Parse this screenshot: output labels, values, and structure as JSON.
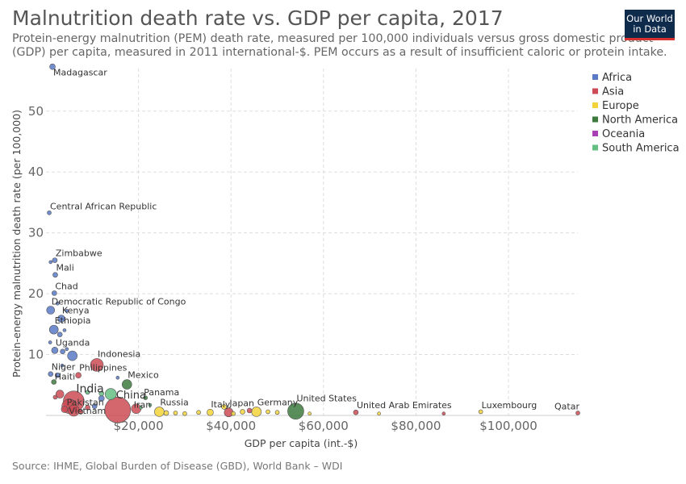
{
  "header": {
    "title": "Malnutrition death rate vs. GDP per capita, 2017",
    "subtitle": "Protein-energy malnutrition (PEM) death rate, measured per 100,000 individuals versus gross domestic product (GDP) per capita, measured in 2011 international-$. PEM occurs as a result of insufficient caloric or protein intake.",
    "logo_line1": "Our World",
    "logo_line2": "in Data"
  },
  "footer": {
    "source": "Source: IHME, Global Burden of Disease (GBD), World Bank – WDI"
  },
  "colors": {
    "Africa": "#5b7ac6",
    "Asia": "#cc4b55",
    "Europe": "#f2d33a",
    "North America": "#3d7a3d",
    "Oceania": "#a83fb5",
    "South America": "#65bf83"
  },
  "chart_data": {
    "type": "scatter",
    "title": "Malnutrition death rate vs. GDP per capita, 2017",
    "xlabel": "GDP per capita (int.-$)",
    "ylabel": "Protein-energy malnutrition death rate (per 100,000)",
    "xlim": [
      0,
      115000
    ],
    "ylim": [
      0,
      57
    ],
    "xticks": [
      20000,
      40000,
      60000,
      80000,
      100000
    ],
    "xtick_labels": [
      "$20,000",
      "$40,000",
      "$60,000",
      "$80,000",
      "$100,000"
    ],
    "yticks": [
      10,
      20,
      30,
      40,
      50
    ],
    "ytick_labels": [
      "10",
      "20",
      "30",
      "40",
      "50"
    ],
    "grid": true,
    "legend_position": "top-right",
    "legend": [
      "Africa",
      "Asia",
      "Europe",
      "North America",
      "Oceania",
      "South America"
    ],
    "points": [
      {
        "x": 1400,
        "y": 57.3,
        "r": 3.5,
        "region": "Africa",
        "label": "Madagascar"
      },
      {
        "x": 700,
        "y": 33.3,
        "r": 2.5,
        "region": "Africa",
        "label": "Central African Republic"
      },
      {
        "x": 1900,
        "y": 25.5,
        "r": 3,
        "region": "Africa",
        "label": "Zimbabwe"
      },
      {
        "x": 1000,
        "y": 25.2,
        "r": 2,
        "region": "Africa",
        "label": ""
      },
      {
        "x": 2000,
        "y": 23.1,
        "r": 3,
        "region": "Africa",
        "label": "Mali"
      },
      {
        "x": 1800,
        "y": 20.1,
        "r": 3,
        "region": "Africa",
        "label": "Chad"
      },
      {
        "x": 2500,
        "y": 18.4,
        "r": 2,
        "region": "Africa",
        "label": ""
      },
      {
        "x": 1000,
        "y": 17.3,
        "r": 5,
        "region": "Africa",
        "label": "Democratic Republic of Congo"
      },
      {
        "x": 3300,
        "y": 15.9,
        "r": 4.5,
        "region": "Africa",
        "label": "Kenya"
      },
      {
        "x": 4500,
        "y": 17.2,
        "r": 2,
        "region": "Africa",
        "label": ""
      },
      {
        "x": 1700,
        "y": 14.1,
        "r": 5.5,
        "region": "Africa",
        "label": "Ethiopia"
      },
      {
        "x": 3000,
        "y": 13.3,
        "r": 3,
        "region": "Africa",
        "label": ""
      },
      {
        "x": 4000,
        "y": 14.0,
        "r": 2,
        "region": "Africa",
        "label": ""
      },
      {
        "x": 900,
        "y": 12.0,
        "r": 2,
        "region": "Africa",
        "label": ""
      },
      {
        "x": 1900,
        "y": 10.7,
        "r": 4,
        "region": "Africa",
        "label": "Uganda"
      },
      {
        "x": 3600,
        "y": 10.5,
        "r": 3,
        "region": "Africa",
        "label": ""
      },
      {
        "x": 4500,
        "y": 10.9,
        "r": 2,
        "region": "Africa",
        "label": ""
      },
      {
        "x": 5700,
        "y": 9.8,
        "r": 6,
        "region": "Africa",
        "label": ""
      },
      {
        "x": 1000,
        "y": 6.8,
        "r": 3,
        "region": "Africa",
        "label": "Niger"
      },
      {
        "x": 2500,
        "y": 6.6,
        "r": 3,
        "region": "Africa",
        "label": ""
      },
      {
        "x": 3500,
        "y": 8.2,
        "r": 2,
        "region": "Africa",
        "label": ""
      },
      {
        "x": 7000,
        "y": 6.6,
        "r": 3.5,
        "region": "Asia",
        "label": "Philippines"
      },
      {
        "x": 11000,
        "y": 8.3,
        "r": 8,
        "region": "Asia",
        "label": "Indonesia"
      },
      {
        "x": 1700,
        "y": 5.5,
        "r": 3,
        "region": "North America",
        "label": "Haiti"
      },
      {
        "x": 6000,
        "y": 2.3,
        "r": 13,
        "region": "Asia",
        "label": "India"
      },
      {
        "x": 5000,
        "y": 1.5,
        "r": 9,
        "region": "Asia",
        "label": "Pakistan"
      },
      {
        "x": 6000,
        "y": 0.8,
        "r": 7,
        "region": "Asia",
        "label": "Vietnam"
      },
      {
        "x": 3000,
        "y": 3.5,
        "r": 5,
        "region": "Asia",
        "label": ""
      },
      {
        "x": 4000,
        "y": 1.0,
        "r": 4,
        "region": "Asia",
        "label": ""
      },
      {
        "x": 7500,
        "y": 0.6,
        "r": 3,
        "region": "Asia",
        "label": ""
      },
      {
        "x": 9000,
        "y": 1.3,
        "r": 3,
        "region": "Asia",
        "label": ""
      },
      {
        "x": 2000,
        "y": 3.0,
        "r": 2.5,
        "region": "Asia",
        "label": ""
      },
      {
        "x": 15500,
        "y": 0.9,
        "r": 16,
        "region": "Asia",
        "label": "China"
      },
      {
        "x": 19500,
        "y": 1.1,
        "r": 6,
        "region": "Asia",
        "label": "Iran"
      },
      {
        "x": 12000,
        "y": 2.8,
        "r": 3.5,
        "region": "Africa",
        "label": ""
      },
      {
        "x": 10500,
        "y": 1.5,
        "r": 3,
        "region": "Africa",
        "label": ""
      },
      {
        "x": 14000,
        "y": 3.5,
        "r": 7,
        "region": "South America",
        "label": ""
      },
      {
        "x": 12000,
        "y": 3.6,
        "r": 3,
        "region": "South America",
        "label": ""
      },
      {
        "x": 9000,
        "y": 3.8,
        "r": 2.5,
        "region": "South America",
        "label": ""
      },
      {
        "x": 17500,
        "y": 5.1,
        "r": 6,
        "region": "North America",
        "label": "Mexico"
      },
      {
        "x": 15500,
        "y": 6.2,
        "r": 2,
        "region": "Africa",
        "label": ""
      },
      {
        "x": 21500,
        "y": 2.9,
        "r": 2.5,
        "region": "North America",
        "label": "Panama"
      },
      {
        "x": 20500,
        "y": 1.3,
        "r": 2,
        "region": "South America",
        "label": ""
      },
      {
        "x": 22500,
        "y": 1.7,
        "r": 2,
        "region": "South America",
        "label": ""
      },
      {
        "x": 24500,
        "y": 0.6,
        "r": 6,
        "region": "Europe",
        "label": "Russia"
      },
      {
        "x": 26000,
        "y": 0.4,
        "r": 3,
        "region": "Europe",
        "label": ""
      },
      {
        "x": 28000,
        "y": 0.4,
        "r": 2.5,
        "region": "Europe",
        "label": ""
      },
      {
        "x": 30000,
        "y": 0.3,
        "r": 2.5,
        "region": "Europe",
        "label": ""
      },
      {
        "x": 33000,
        "y": 0.5,
        "r": 2.5,
        "region": "Europe",
        "label": ""
      },
      {
        "x": 35500,
        "y": 0.5,
        "r": 4,
        "region": "Europe",
        "label": "Italy"
      },
      {
        "x": 38500,
        "y": 1.4,
        "r": 3,
        "region": "Europe",
        "label": ""
      },
      {
        "x": 39500,
        "y": 0.5,
        "r": 5.5,
        "region": "Asia",
        "label": "Japan"
      },
      {
        "x": 40500,
        "y": 0.3,
        "r": 2.5,
        "region": "Europe",
        "label": ""
      },
      {
        "x": 42500,
        "y": 0.6,
        "r": 3,
        "region": "Europe",
        "label": ""
      },
      {
        "x": 45500,
        "y": 0.6,
        "r": 6,
        "region": "Europe",
        "label": "Germany"
      },
      {
        "x": 44000,
        "y": 0.8,
        "r": 3,
        "region": "Asia",
        "label": ""
      },
      {
        "x": 48000,
        "y": 0.6,
        "r": 2.5,
        "region": "Europe",
        "label": ""
      },
      {
        "x": 50000,
        "y": 0.5,
        "r": 2.5,
        "region": "Europe",
        "label": ""
      },
      {
        "x": 54000,
        "y": 0.7,
        "r": 10,
        "region": "North America",
        "label": "United States"
      },
      {
        "x": 57000,
        "y": 0.3,
        "r": 2,
        "region": "Europe",
        "label": ""
      },
      {
        "x": 67000,
        "y": 0.5,
        "r": 3,
        "region": "Asia",
        "label": "United Arab Emirates"
      },
      {
        "x": 72000,
        "y": 0.3,
        "r": 2,
        "region": "Europe",
        "label": ""
      },
      {
        "x": 86000,
        "y": 0.3,
        "r": 2,
        "region": "Asia",
        "label": ""
      },
      {
        "x": 94000,
        "y": 0.6,
        "r": 2.5,
        "region": "Europe",
        "label": "Luxembourg"
      },
      {
        "x": 115000,
        "y": 0.4,
        "r": 2.5,
        "region": "Asia",
        "label": "Qatar"
      }
    ]
  }
}
